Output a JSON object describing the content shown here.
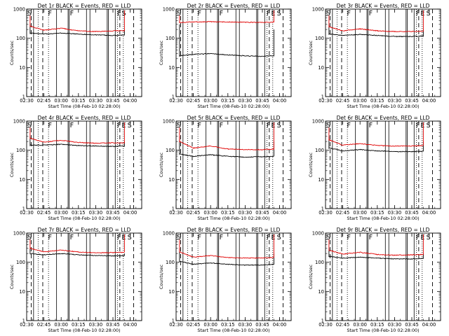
{
  "figure": {
    "ylabel": "Counts/sec",
    "xlabel": "Start Time (08-Feb-10 02:28:00)",
    "x_ticks": [
      "02:30",
      "02:45",
      "03:00",
      "03:15",
      "03:30",
      "03:45",
      "04:00"
    ],
    "y_ticks": [
      "1",
      "10",
      "100",
      "1000"
    ],
    "series_colors": {
      "events": "#000000",
      "lld": "#e00000"
    }
  },
  "chart_data": [
    {
      "type": "line",
      "title": "Det 1r BLACK = Events, RED = LLD",
      "xlabel": "Start Time (08-Feb-10 02:28:00)",
      "ylabel": "Counts/sec",
      "xlim": [
        "02:30",
        "04:10"
      ],
      "ylim": [
        1,
        1000
      ],
      "yscale": "log",
      "x": [
        "02:33",
        "02:45",
        "03:00",
        "03:15",
        "03:30",
        "03:45",
        "03:55"
      ],
      "series": [
        {
          "values": [
            150,
            140,
            150,
            140,
            130,
            125,
            130
          ]
        },
        {
          "values": [
            260,
            190,
            220,
            180,
            170,
            180,
            180
          ]
        }
      ],
      "markers": [
        "S",
        "F",
        "F",
        "E",
        "S"
      ]
    },
    {
      "type": "line",
      "title": "Det 2r BLACK = Events, RED = LLD",
      "xlabel": "Start Time (08-Feb-10 02:28:00)",
      "ylabel": "Counts/sec",
      "xlim": [
        "02:30",
        "04:10"
      ],
      "ylim": [
        1,
        1000
      ],
      "yscale": "log",
      "x": [
        "02:33",
        "02:45",
        "03:00",
        "03:15",
        "03:30",
        "03:45",
        "03:55"
      ],
      "series": [
        {
          "values": [
            25,
            28,
            30,
            27,
            25,
            24,
            25
          ]
        },
        {
          "values": [
            350,
            360,
            370,
            360,
            355,
            350,
            360
          ]
        }
      ],
      "markers": [
        "S",
        "F",
        "F",
        "F",
        "E",
        "S"
      ]
    },
    {
      "type": "line",
      "title": "Det 3r BLACK = Events, RED = LLD",
      "xlabel": "Start Time (08-Feb-10 02:28:00)",
      "ylabel": "Counts/sec",
      "xlim": [
        "02:30",
        "04:10"
      ],
      "ylim": [
        1,
        1000
      ],
      "yscale": "log",
      "x": [
        "02:33",
        "02:45",
        "03:00",
        "03:15",
        "03:30",
        "03:45",
        "03:55"
      ],
      "series": [
        {
          "values": [
            140,
            125,
            135,
            125,
            115,
            115,
            120
          ]
        },
        {
          "values": [
            250,
            180,
            210,
            180,
            170,
            170,
            175
          ]
        }
      ],
      "markers": [
        "S",
        "F",
        "F",
        "F",
        "E",
        "S"
      ]
    },
    {
      "type": "line",
      "title": "Det 4r BLACK = Events, RED = LLD",
      "xlabel": "Start Time (08-Feb-10 02:28:00)",
      "ylabel": "Counts/sec",
      "xlim": [
        "02:30",
        "04:10"
      ],
      "ylim": [
        1,
        1000
      ],
      "yscale": "log",
      "x": [
        "02:33",
        "02:45",
        "03:00",
        "03:15",
        "03:30",
        "03:45",
        "03:55"
      ],
      "series": [
        {
          "values": [
            150,
            150,
            160,
            145,
            140,
            135,
            140
          ]
        },
        {
          "values": [
            260,
            190,
            220,
            185,
            175,
            180,
            180
          ]
        }
      ],
      "markers": [
        "S",
        "F",
        "F",
        "F",
        "E",
        "S"
      ]
    },
    {
      "type": "line",
      "title": "Det 5r BLACK = Events, RED = LLD",
      "xlabel": "Start Time (08-Feb-10 02:28:00)",
      "ylabel": "Counts/sec",
      "xlim": [
        "02:30",
        "04:10"
      ],
      "ylim": [
        1,
        1000
      ],
      "yscale": "log",
      "x": [
        "02:33",
        "02:45",
        "03:00",
        "03:15",
        "03:30",
        "03:45",
        "03:55"
      ],
      "series": [
        {
          "values": [
            75,
            62,
            70,
            62,
            58,
            60,
            62
          ]
        },
        {
          "values": [
            200,
            120,
            140,
            110,
            105,
            105,
            110
          ]
        }
      ],
      "markers": [
        "S",
        "F",
        "F",
        "F",
        "E",
        "S"
      ]
    },
    {
      "type": "line",
      "title": "Det 6r BLACK = Events, RED = LLD",
      "xlabel": "Start Time (08-Feb-10 02:28:00)",
      "ylabel": "Counts/sec",
      "xlim": [
        "02:30",
        "04:10"
      ],
      "ylim": [
        1,
        1000
      ],
      "yscale": "log",
      "x": [
        "02:33",
        "02:45",
        "03:00",
        "03:15",
        "03:30",
        "03:45",
        "03:55"
      ],
      "series": [
        {
          "values": [
            120,
            95,
            105,
            95,
            90,
            90,
            92
          ]
        },
        {
          "values": [
            230,
            150,
            170,
            145,
            140,
            140,
            145
          ]
        }
      ],
      "markers": [
        "S",
        "F",
        "F",
        "F",
        "E",
        "S"
      ]
    },
    {
      "type": "line",
      "title": "Det 7r BLACK = Events, RED = LLD",
      "xlabel": "Start Time (08-Feb-10 02:28:00)",
      "ylabel": "Counts/sec",
      "xlim": [
        "02:30",
        "04:10"
      ],
      "ylim": [
        1,
        1000
      ],
      "yscale": "log",
      "x": [
        "02:33",
        "02:45",
        "03:00",
        "03:15",
        "03:30",
        "03:45",
        "03:55"
      ],
      "series": [
        {
          "values": [
            200,
            180,
            200,
            180,
            170,
            165,
            170
          ]
        },
        {
          "values": [
            300,
            230,
            260,
            225,
            210,
            215,
            220
          ]
        }
      ],
      "markers": [
        "S",
        "F",
        "F",
        "F",
        "E",
        "S"
      ]
    },
    {
      "type": "line",
      "title": "Det 8r BLACK = Events, RED = LLD",
      "xlabel": "Start Time (08-Feb-10 02:28:00)",
      "ylabel": "Counts/sec",
      "xlim": [
        "02:30",
        "04:10"
      ],
      "ylim": [
        1,
        1000
      ],
      "yscale": "log",
      "x": [
        "02:33",
        "02:45",
        "03:00",
        "03:15",
        "03:30",
        "03:45",
        "03:55"
      ],
      "series": [
        {
          "values": [
            110,
            85,
            95,
            85,
            80,
            80,
            85
          ]
        },
        {
          "values": [
            230,
            150,
            170,
            145,
            140,
            140,
            145
          ]
        }
      ],
      "markers": [
        "S",
        "F",
        "F",
        "F",
        "E",
        "S"
      ]
    },
    {
      "type": "line",
      "title": "Det 9r BLACK = Events, RED = LLD",
      "xlabel": "Start Time (08-Feb-10 02:28:00)",
      "ylabel": "Counts/sec",
      "xlim": [
        "02:30",
        "04:10"
      ],
      "ylim": [
        1,
        1000
      ],
      "yscale": "log",
      "x": [
        "02:33",
        "02:45",
        "03:00",
        "03:15",
        "03:30",
        "03:45",
        "03:55"
      ],
      "series": [
        {
          "values": [
            160,
            140,
            150,
            140,
            130,
            130,
            135
          ]
        },
        {
          "values": [
            260,
            190,
            220,
            185,
            175,
            180,
            185
          ]
        }
      ],
      "markers": [
        "S",
        "F",
        "F",
        "F",
        "E",
        "S"
      ]
    }
  ]
}
